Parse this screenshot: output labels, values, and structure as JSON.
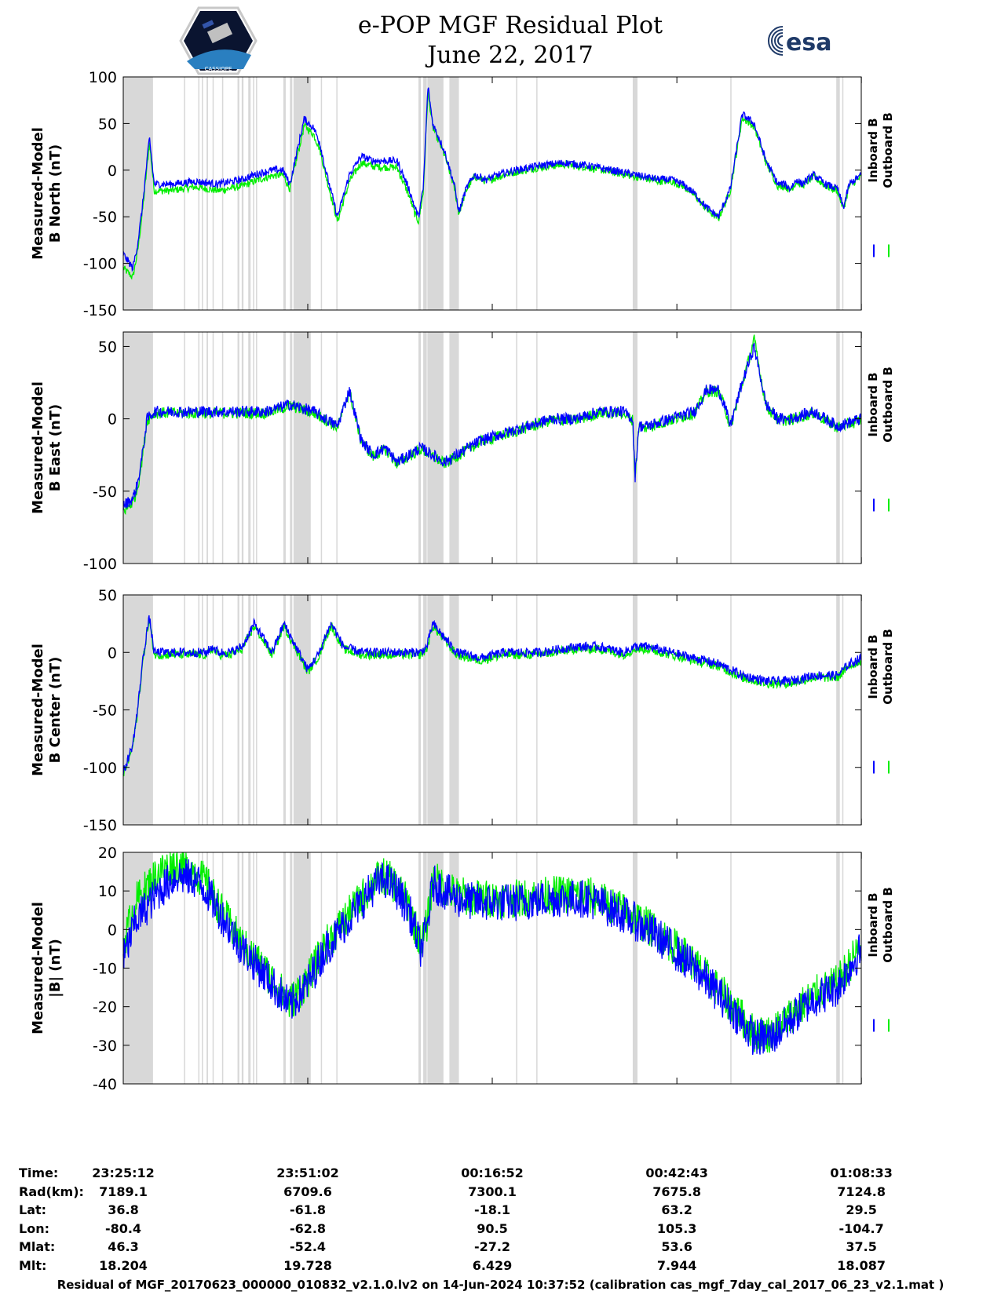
{
  "header": {
    "title_line1": "e-POP MGF Residual Plot",
    "title_line2": "June 22, 2017",
    "logo_left": "CASSIOPE",
    "logo_right": "esa"
  },
  "legend": {
    "inboard": "Inboard B",
    "outboard": "Outboard B",
    "inboard_color": "#0000ff",
    "outboard_color": "#00ee00"
  },
  "colors": {
    "gap_shade": "#d8d8d8",
    "axes": "#000000"
  },
  "time_axis": {
    "range_s": [
      0,
      6200
    ],
    "ticks_s": [
      0,
      1550,
      3100,
      4651,
      6201
    ]
  },
  "gaps": [
    [
      0,
      250
    ],
    [
      510,
      520
    ],
    [
      630,
      640
    ],
    [
      660,
      670
    ],
    [
      700,
      712
    ],
    [
      750,
      760
    ],
    [
      830,
      840
    ],
    [
      960,
      975
    ],
    [
      995,
      1010
    ],
    [
      1050,
      1070
    ],
    [
      1090,
      1100
    ],
    [
      1115,
      1125
    ],
    [
      1345,
      1365
    ],
    [
      1400,
      1420
    ],
    [
      1430,
      1575
    ],
    [
      1660,
      1670
    ],
    [
      1790,
      1800
    ],
    [
      2480,
      2500
    ],
    [
      2520,
      2550
    ],
    [
      2555,
      2690
    ],
    [
      2740,
      2820
    ],
    [
      3300,
      3310
    ],
    [
      3470,
      3480
    ],
    [
      4280,
      4320
    ],
    [
      5100,
      5110
    ],
    [
      5990,
      6020
    ],
    [
      6040,
      6050
    ]
  ],
  "info": {
    "labels": [
      "Time:",
      "Rad(km):",
      "Lat:",
      "Lon:",
      "Mlat:",
      "Mlt:"
    ],
    "columns": [
      [
        "23:25:12",
        "7189.1",
        "36.8",
        "-80.4",
        "46.3",
        "18.204"
      ],
      [
        "23:51:02",
        "6709.6",
        "-61.8",
        "-62.8",
        "-52.4",
        "19.728"
      ],
      [
        "00:16:52",
        "7300.1",
        "-18.1",
        "90.5",
        "-27.2",
        "6.429"
      ],
      [
        "00:42:43",
        "7675.8",
        "63.2",
        "105.3",
        "53.6",
        "7.944"
      ],
      [
        "01:08:33",
        "7124.8",
        "29.5",
        "-104.7",
        "37.5",
        "18.087"
      ]
    ]
  },
  "footer": "Residual of MGF_20170623_000000_010832_v2.1.0.lv2 on 14-Jun-2024 10:37:52 (calibration cas_mgf_7day_cal_2017_06_23_v2.1.mat )",
  "chart_data": [
    {
      "type": "line",
      "ylabel_1": "Measured-Model",
      "ylabel_2": "B North (nT)",
      "ylim": [
        -150,
        100
      ],
      "yticks": [
        100,
        50,
        0,
        -50,
        -100,
        -150
      ],
      "noise": 4,
      "series": [
        {
          "name": "Inboard B",
          "x": [
            0,
            80,
            120,
            160,
            200,
            220,
            260,
            400,
            600,
            800,
            1000,
            1100,
            1250,
            1340,
            1400,
            1460,
            1520,
            1600,
            1650,
            1700,
            1800,
            1900,
            2000,
            2100,
            2200,
            2300,
            2400,
            2450,
            2480,
            2520,
            2560,
            2600,
            2700,
            2780,
            2820,
            2880,
            2950,
            3050,
            3150,
            3300,
            3500,
            3700,
            3900,
            4100,
            4300,
            4500,
            4600,
            4700,
            4800,
            4900,
            5000,
            5100,
            5200,
            5300,
            5400,
            5500,
            5560,
            5600,
            5660,
            5700,
            5800,
            5900,
            6000,
            6050,
            6100,
            6200
          ],
          "values": [
            -90,
            -105,
            -80,
            -40,
            10,
            35,
            -15,
            -15,
            -12,
            -15,
            -10,
            -5,
            0,
            0,
            -15,
            20,
            55,
            45,
            30,
            0,
            -50,
            -5,
            15,
            10,
            10,
            10,
            -20,
            -40,
            -50,
            -20,
            90,
            50,
            20,
            -15,
            -45,
            -20,
            -5,
            -10,
            -5,
            0,
            5,
            8,
            5,
            0,
            -5,
            -10,
            -10,
            -15,
            -25,
            -40,
            -50,
            -20,
            60,
            50,
            10,
            -15,
            -15,
            -20,
            -10,
            -15,
            -5,
            -15,
            -20,
            -40,
            -15,
            -5
          ]
        },
        {
          "name": "Outboard B",
          "x": [
            0,
            80,
            120,
            160,
            200,
            220,
            260,
            400,
            600,
            800,
            1000,
            1100,
            1250,
            1340,
            1400,
            1460,
            1520,
            1600,
            1650,
            1700,
            1800,
            1900,
            2000,
            2100,
            2200,
            2300,
            2400,
            2450,
            2480,
            2520,
            2560,
            2600,
            2700,
            2780,
            2820,
            2880,
            2950,
            3050,
            3150,
            3300,
            3500,
            3700,
            3900,
            4100,
            4300,
            4500,
            4600,
            4700,
            4800,
            4900,
            5000,
            5100,
            5200,
            5300,
            5400,
            5500,
            5560,
            5600,
            5660,
            5700,
            5800,
            5900,
            6000,
            6050,
            6100,
            6200
          ],
          "values": [
            -105,
            -115,
            -88,
            -46,
            4,
            30,
            -22,
            -22,
            -18,
            -22,
            -17,
            -12,
            -6,
            -5,
            -20,
            14,
            48,
            38,
            23,
            -5,
            -55,
            -12,
            8,
            4,
            3,
            3,
            -27,
            -47,
            -55,
            -25,
            84,
            46,
            16,
            -18,
            -47,
            -22,
            -7,
            -12,
            -7,
            -2,
            3,
            6,
            3,
            -2,
            -7,
            -12,
            -12,
            -17,
            -27,
            -42,
            -52,
            -22,
            56,
            47,
            8,
            -17,
            -17,
            -22,
            -12,
            -17,
            -7,
            -17,
            -22,
            -42,
            -17,
            -7
          ]
        }
      ]
    },
    {
      "type": "line",
      "ylabel_1": "Measured-Model",
      "ylabel_2": "B East (nT)",
      "ylim": [
        -100,
        60
      ],
      "yticks": [
        50,
        0,
        -50,
        -100
      ],
      "noise": 4,
      "series": [
        {
          "name": "Inboard B",
          "x": [
            0,
            80,
            120,
            160,
            200,
            260,
            400,
            600,
            900,
            1200,
            1400,
            1600,
            1700,
            1800,
            1900,
            2000,
            2100,
            2200,
            2300,
            2400,
            2500,
            2600,
            2700,
            2800,
            2900,
            3000,
            3200,
            3400,
            3600,
            3800,
            4000,
            4200,
            4280,
            4300,
            4330,
            4400,
            4600,
            4800,
            4900,
            5000,
            5050,
            5100,
            5200,
            5300,
            5400,
            5500,
            5600,
            5800,
            6000,
            6200
          ],
          "values": [
            -60,
            -55,
            -45,
            -25,
            0,
            5,
            5,
            5,
            5,
            5,
            10,
            5,
            0,
            -5,
            20,
            -15,
            -25,
            -20,
            -30,
            -25,
            -20,
            -25,
            -30,
            -25,
            -20,
            -15,
            -10,
            -5,
            0,
            0,
            5,
            5,
            0,
            -40,
            -5,
            -5,
            0,
            5,
            20,
            20,
            10,
            -5,
            25,
            50,
            10,
            0,
            0,
            5,
            -5,
            0
          ]
        },
        {
          "name": "Outboard B",
          "x": [
            0,
            80,
            120,
            160,
            200,
            260,
            400,
            600,
            900,
            1200,
            1400,
            1600,
            1700,
            1800,
            1900,
            2000,
            2100,
            2200,
            2300,
            2400,
            2500,
            2600,
            2700,
            2800,
            2900,
            3000,
            3200,
            3400,
            3600,
            3800,
            4000,
            4200,
            4280,
            4300,
            4330,
            4400,
            4600,
            4800,
            4900,
            5000,
            5050,
            5100,
            5200,
            5300,
            5400,
            5500,
            5600,
            5800,
            6000,
            6200
          ],
          "values": [
            -64,
            -58,
            -48,
            -27,
            -1,
            4,
            4,
            4,
            4,
            4,
            9,
            4,
            -1,
            -6,
            19,
            -16,
            -26,
            -21,
            -31,
            -26,
            -21,
            -26,
            -31,
            -26,
            -21,
            -16,
            -11,
            -6,
            -1,
            -1,
            4,
            4,
            -1,
            -41,
            -6,
            -6,
            -1,
            4,
            19,
            19,
            9,
            -6,
            24,
            55,
            9,
            -1,
            -1,
            4,
            -6,
            -1
          ]
        }
      ]
    },
    {
      "type": "line",
      "ylabel_1": "Measured-Model",
      "ylabel_2": "B Center (nT)",
      "ylim": [
        -150,
        50
      ],
      "yticks": [
        50,
        0,
        -50,
        -100,
        -150
      ],
      "noise": 4,
      "series": [
        {
          "name": "Inboard B",
          "x": [
            0,
            80,
            120,
            160,
            200,
            220,
            260,
            400,
            600,
            700,
            750,
            800,
            900,
            1000,
            1100,
            1250,
            1350,
            1450,
            1550,
            1650,
            1700,
            1750,
            1850,
            2000,
            2200,
            2400,
            2500,
            2550,
            2600,
            2800,
            3000,
            3200,
            3500,
            3800,
            4000,
            4200,
            4300,
            4400,
            4600,
            4800,
            5000,
            5200,
            5400,
            5600,
            5800,
            6000,
            6100,
            6200
          ],
          "values": [
            -105,
            -80,
            -50,
            -10,
            20,
            30,
            0,
            0,
            0,
            0,
            5,
            0,
            0,
            5,
            25,
            0,
            25,
            5,
            -15,
            0,
            15,
            25,
            5,
            0,
            0,
            0,
            0,
            5,
            25,
            0,
            -5,
            0,
            0,
            5,
            5,
            0,
            5,
            5,
            0,
            -5,
            -10,
            -20,
            -25,
            -25,
            -20,
            -20,
            -10,
            -5
          ]
        },
        {
          "name": "Outboard B",
          "x": [
            0,
            80,
            120,
            160,
            200,
            220,
            260,
            400,
            600,
            700,
            750,
            800,
            900,
            1000,
            1100,
            1250,
            1350,
            1450,
            1550,
            1650,
            1700,
            1750,
            1850,
            2000,
            2200,
            2400,
            2500,
            2550,
            2600,
            2800,
            3000,
            3200,
            3500,
            3800,
            4000,
            4200,
            4300,
            4400,
            4600,
            4800,
            5000,
            5200,
            5400,
            5600,
            5800,
            6000,
            6100,
            6200
          ],
          "values": [
            -107,
            -82,
            -52,
            -12,
            18,
            28,
            -2,
            -2,
            -2,
            -2,
            3,
            -2,
            -2,
            3,
            23,
            -2,
            23,
            3,
            -17,
            -2,
            13,
            23,
            3,
            -2,
            -2,
            -2,
            -2,
            3,
            23,
            -2,
            -7,
            -2,
            -2,
            3,
            3,
            -2,
            3,
            3,
            -2,
            -7,
            -12,
            -22,
            -27,
            -27,
            -22,
            -22,
            -12,
            -7
          ]
        }
      ]
    },
    {
      "type": "line",
      "ylabel_1": "Measured-Model",
      "ylabel_2": "|B| (nT)",
      "ylim": [
        -40,
        20
      ],
      "yticks": [
        20,
        10,
        0,
        -10,
        -20,
        -30,
        -40
      ],
      "noise": 5,
      "series": [
        {
          "name": "Inboard B",
          "x": [
            0,
            100,
            200,
            300,
            450,
            600,
            700,
            800,
            1000,
            1200,
            1400,
            1550,
            1700,
            1900,
            2100,
            2200,
            2300,
            2400,
            2500,
            2550,
            2600,
            2700,
            2800,
            3000,
            3300,
            3600,
            3900,
            4200,
            4500,
            4800,
            5100,
            5300,
            5450,
            5550,
            5650,
            5800,
            6000,
            6100,
            6200
          ],
          "values": [
            -8,
            2,
            6,
            10,
            14,
            13,
            10,
            5,
            -5,
            -12,
            -20,
            -14,
            -5,
            3,
            11,
            13,
            10,
            5,
            -5,
            0,
            12,
            10,
            8,
            7,
            7,
            8,
            8,
            4,
            -2,
            -10,
            -20,
            -28,
            -28,
            -25,
            -22,
            -18,
            -15,
            -10,
            -5
          ]
        },
        {
          "name": "Outboard B",
          "x": [
            0,
            100,
            200,
            300,
            450,
            600,
            700,
            800,
            1000,
            1200,
            1400,
            1550,
            1700,
            1900,
            2100,
            2200,
            2300,
            2400,
            2500,
            2550,
            2600,
            2700,
            2800,
            3000,
            3300,
            3600,
            3900,
            4200,
            4500,
            4800,
            5100,
            5300,
            5450,
            5550,
            5650,
            5800,
            6000,
            6100,
            6200
          ],
          "values": [
            -4,
            7,
            11,
            15,
            17,
            15,
            12,
            6,
            -4,
            -11,
            -19,
            -13,
            -4,
            4,
            12,
            14,
            11,
            6,
            -4,
            1,
            13,
            11,
            9,
            8,
            8,
            9,
            9,
            5,
            -1,
            -9,
            -19,
            -27,
            -27,
            -24,
            -21,
            -17,
            -14,
            -9,
            -4
          ]
        }
      ]
    }
  ]
}
